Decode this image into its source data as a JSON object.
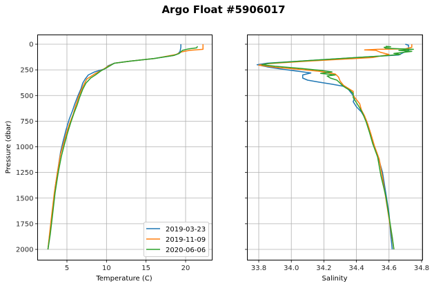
{
  "chart_data": {
    "type": "line",
    "title": "Argo Float #5906017",
    "subplots": [
      {
        "name": "temperature",
        "xlabel": "Temperature (C)",
        "ylabel": "Pressure (dbar)",
        "xlim": [
          1.25,
          23.35
        ],
        "ylim": [
          2100,
          -100
        ],
        "y_inverted": true,
        "xticks": [
          5,
          10,
          15,
          20
        ],
        "yticks": [
          0,
          250,
          500,
          750,
          1000,
          1250,
          1500,
          1750,
          2000
        ],
        "grid": true,
        "legend": {
          "position": "lower right",
          "entries": [
            "2019-03-23",
            "2019-11-09",
            "2020-06-06"
          ]
        },
        "series": [
          {
            "name": "2019-03-23",
            "color": "#1f77b4",
            "points": [
              [
                19.4,
                0
              ],
              [
                19.4,
                30
              ],
              [
                19.3,
                70
              ],
              [
                19.0,
                95
              ],
              [
                18.5,
                110
              ],
              [
                16,
                140
              ],
              [
                13,
                165
              ],
              [
                11,
                185
              ],
              [
                10.2,
                210
              ],
              [
                9.8,
                240
              ],
              [
                8.5,
                270
              ],
              [
                7.7,
                300
              ],
              [
                7.3,
                340
              ],
              [
                7.0,
                380
              ],
              [
                6.8,
                430
              ],
              [
                6.4,
                500
              ],
              [
                6.0,
                580
              ],
              [
                5.7,
                650
              ],
              [
                5.3,
                730
              ],
              [
                4.9,
                830
              ],
              [
                4.5,
                950
              ],
              [
                4.2,
                1050
              ],
              [
                3.9,
                1200
              ],
              [
                3.5,
                1400
              ],
              [
                3.2,
                1600
              ],
              [
                2.9,
                1800
              ],
              [
                2.6,
                2000
              ]
            ]
          },
          {
            "name": "2019-11-09",
            "color": "#ff7f0e",
            "points": [
              [
                22.2,
                0
              ],
              [
                22.2,
                50
              ],
              [
                20.5,
                60
              ],
              [
                19.5,
                75
              ],
              [
                18.8,
                100
              ],
              [
                16,
                140
              ],
              [
                13,
                165
              ],
              [
                11,
                185
              ],
              [
                10.2,
                215
              ],
              [
                9.5,
                250
              ],
              [
                8.5,
                290
              ],
              [
                7.5,
                340
              ],
              [
                7.1,
                400
              ],
              [
                6.8,
                450
              ],
              [
                6.5,
                510
              ],
              [
                6.1,
                600
              ],
              [
                5.8,
                680
              ],
              [
                5.4,
                760
              ],
              [
                5.0,
                850
              ],
              [
                4.6,
                960
              ],
              [
                4.2,
                1070
              ],
              [
                3.8,
                1250
              ],
              [
                3.4,
                1450
              ],
              [
                3.1,
                1650
              ],
              [
                2.8,
                1850
              ],
              [
                2.6,
                2000
              ]
            ]
          },
          {
            "name": "2020-06-06",
            "color": "#2ca02c",
            "points": [
              [
                21.5,
                20
              ],
              [
                21.4,
                35
              ],
              [
                20.4,
                45
              ],
              [
                19.6,
                60
              ],
              [
                19.2,
                90
              ],
              [
                18.5,
                110
              ],
              [
                16,
                140
              ],
              [
                13,
                165
              ],
              [
                11,
                185
              ],
              [
                10.0,
                230
              ],
              [
                9.3,
                260
              ],
              [
                8.6,
                300
              ],
              [
                8.0,
                330
              ],
              [
                7.4,
                380
              ],
              [
                7.0,
                440
              ],
              [
                6.6,
                520
              ],
              [
                6.3,
                590
              ],
              [
                5.9,
                670
              ],
              [
                5.5,
                760
              ],
              [
                5.1,
                860
              ],
              [
                4.7,
                970
              ],
              [
                4.3,
                1090
              ],
              [
                3.9,
                1250
              ],
              [
                3.5,
                1450
              ],
              [
                3.2,
                1650
              ],
              [
                2.9,
                1850
              ],
              [
                2.6,
                2000
              ]
            ]
          }
        ]
      },
      {
        "name": "salinity",
        "xlabel": "Salinity",
        "xlim": [
          33.73,
          34.81
        ],
        "ylim": [
          2100,
          -100
        ],
        "y_inverted": true,
        "xticks": [
          33.8,
          34.0,
          34.2,
          34.4,
          34.6,
          34.8
        ],
        "yticks": [
          0,
          250,
          500,
          750,
          1000,
          1250,
          1500,
          1750,
          2000
        ],
        "grid": true,
        "series": [
          {
            "name": "2019-03-23",
            "color": "#1f77b4",
            "points": [
              [
                34.7,
                0
              ],
              [
                34.72,
                10
              ],
              [
                34.72,
                60
              ],
              [
                34.69,
                80
              ],
              [
                34.66,
                105
              ],
              [
                34.4,
                130
              ],
              [
                34.1,
                160
              ],
              [
                33.85,
                185
              ],
              [
                33.79,
                200
              ],
              [
                33.85,
                220
              ],
              [
                33.95,
                245
              ],
              [
                34.05,
                265
              ],
              [
                34.12,
                280
              ],
              [
                34.07,
                300
              ],
              [
                34.07,
                330
              ],
              [
                34.1,
                350
              ],
              [
                34.17,
                370
              ],
              [
                34.25,
                390
              ],
              [
                34.32,
                410
              ],
              [
                34.35,
                440
              ],
              [
                34.37,
                480
              ],
              [
                34.39,
                520
              ],
              [
                34.38,
                560
              ],
              [
                34.4,
                610
              ],
              [
                34.43,
                660
              ],
              [
                34.46,
                740
              ],
              [
                34.48,
                840
              ],
              [
                34.5,
                960
              ],
              [
                34.53,
                1080
              ],
              [
                34.56,
                1250
              ],
              [
                34.58,
                1450
              ],
              [
                34.6,
                1650
              ],
              [
                34.61,
                1850
              ],
              [
                34.62,
                2000
              ]
            ]
          },
          {
            "name": "2019-11-09",
            "color": "#ff7f0e",
            "points": [
              [
                34.74,
                0
              ],
              [
                34.74,
                30
              ],
              [
                34.7,
                45
              ],
              [
                34.53,
                50
              ],
              [
                34.45,
                55
              ],
              [
                34.52,
                60
              ],
              [
                34.55,
                80
              ],
              [
                34.6,
                100
              ],
              [
                34.5,
                130
              ],
              [
                34.1,
                165
              ],
              [
                33.85,
                190
              ],
              [
                33.8,
                205
              ],
              [
                33.9,
                225
              ],
              [
                34.05,
                245
              ],
              [
                34.18,
                265
              ],
              [
                34.27,
                290
              ],
              [
                34.29,
                320
              ],
              [
                34.3,
                360
              ],
              [
                34.32,
                400
              ],
              [
                34.35,
                430
              ],
              [
                34.38,
                460
              ],
              [
                34.38,
                500
              ],
              [
                34.4,
                540
              ],
              [
                34.42,
                580
              ],
              [
                34.43,
                640
              ],
              [
                34.45,
                700
              ],
              [
                34.47,
                780
              ],
              [
                34.49,
                880
              ],
              [
                34.51,
                990
              ],
              [
                34.54,
                1120
              ],
              [
                34.56,
                1300
              ],
              [
                34.58,
                1500
              ],
              [
                34.6,
                1700
              ],
              [
                34.62,
                1900
              ],
              [
                34.63,
                2000
              ]
            ]
          },
          {
            "name": "2020-06-06",
            "color": "#2ca02c",
            "points": [
              [
                34.58,
                20
              ],
              [
                34.61,
                25
              ],
              [
                34.57,
                30
              ],
              [
                34.58,
                40
              ],
              [
                34.68,
                45
              ],
              [
                34.75,
                50
              ],
              [
                34.66,
                60
              ],
              [
                34.74,
                70
              ],
              [
                34.63,
                90
              ],
              [
                34.67,
                100
              ],
              [
                34.55,
                115
              ],
              [
                34.4,
                130
              ],
              [
                34.1,
                160
              ],
              [
                33.87,
                185
              ],
              [
                33.82,
                200
              ],
              [
                33.9,
                215
              ],
              [
                34.05,
                235
              ],
              [
                34.18,
                255
              ],
              [
                34.25,
                270
              ],
              [
                34.18,
                285
              ],
              [
                34.27,
                300
              ],
              [
                34.22,
                310
              ],
              [
                34.24,
                330
              ],
              [
                34.28,
                350
              ],
              [
                34.3,
                380
              ],
              [
                34.32,
                410
              ],
              [
                34.34,
                430
              ],
              [
                34.36,
                450
              ],
              [
                34.38,
                480
              ],
              [
                34.38,
                520
              ],
              [
                34.4,
                570
              ],
              [
                34.42,
                620
              ],
              [
                34.44,
                680
              ],
              [
                34.46,
                760
              ],
              [
                34.48,
                860
              ],
              [
                34.5,
                970
              ],
              [
                34.53,
                1100
              ],
              [
                34.55,
                1280
              ],
              [
                34.58,
                1480
              ],
              [
                34.6,
                1680
              ],
              [
                34.62,
                1880
              ],
              [
                34.63,
                2000
              ]
            ]
          }
        ]
      }
    ]
  },
  "figure": {
    "title": "Argo Float #5906017",
    "left": {
      "xlabel": "Temperature (C)",
      "ylabel": "Pressure (dbar)",
      "xtick_labels": [
        "5",
        "10",
        "15",
        "20"
      ],
      "ytick_labels": [
        "0",
        "250",
        "500",
        "750",
        "1000",
        "1250",
        "1500",
        "1750",
        "2000"
      ]
    },
    "right": {
      "xlabel": "Salinity",
      "xtick_labels": [
        "33.8",
        "34.0",
        "34.2",
        "34.4",
        "34.6",
        "34.8"
      ]
    },
    "legend": [
      "2019-03-23",
      "2019-11-09",
      "2020-06-06"
    ]
  }
}
